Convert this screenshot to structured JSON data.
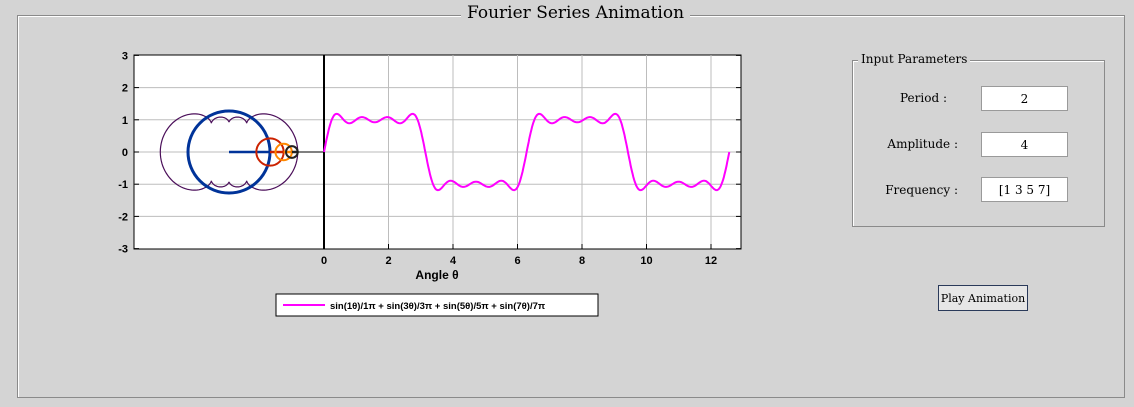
{
  "window": {
    "title": "Fourier Series Animation"
  },
  "parameters": {
    "panel_title": "Input Parameters",
    "period_label": "Period :",
    "period_value": "2",
    "amplitude_label": "Amplitude :",
    "amplitude_value": "4",
    "frequency_label": "Frequency :",
    "frequency_value": "[1 3 5 7]"
  },
  "actions": {
    "play_label": "Play Animation"
  },
  "chart_data": {
    "type": "line",
    "xlabel": "Angle θ",
    "xlim": [
      0,
      12.566
    ],
    "ylim": [
      -3,
      3
    ],
    "x_ticks": [
      0,
      2,
      4,
      6,
      8,
      10,
      12
    ],
    "y_ticks": [
      3,
      2,
      1,
      0,
      -1,
      -2,
      -3
    ],
    "grid": true,
    "legend_placement": "bottom-center",
    "series": [
      {
        "name": "sin(1θ)/1π + sin(3θ)/3π + sin(5θ)/5π + sin(7θ)/7π",
        "color": "#ff00ff",
        "harmonics": [
          1,
          3,
          5,
          7
        ],
        "amplitude": 4,
        "period": 2
      }
    ],
    "circles": [
      {
        "harmonic": 1,
        "color": "#003399"
      },
      {
        "harmonic": 3,
        "color": "#cc2200"
      },
      {
        "harmonic": 5,
        "color": "#ff8800"
      },
      {
        "harmonic": 7,
        "color": "#222222"
      }
    ],
    "envelope_color": "#4b0f5a"
  }
}
